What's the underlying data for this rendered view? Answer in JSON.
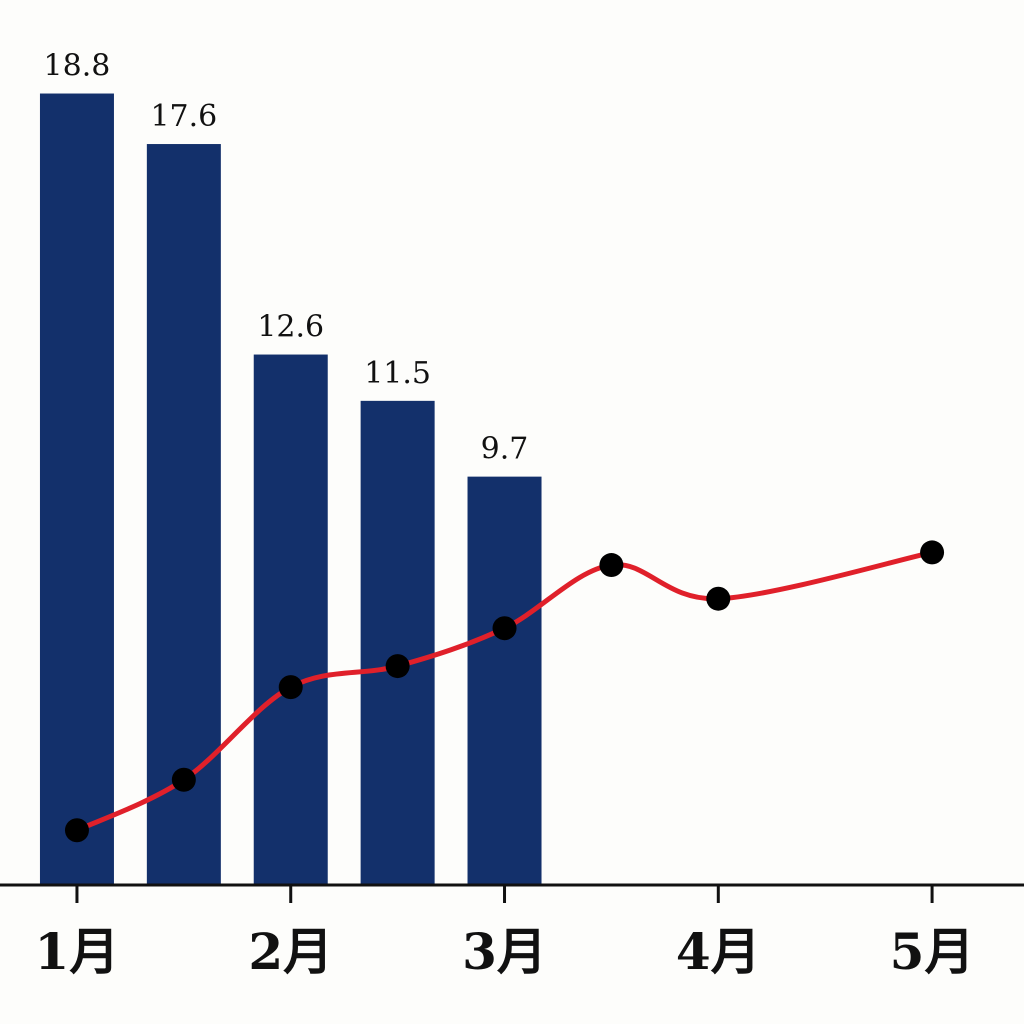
{
  "chart_data": {
    "type": "bar-line",
    "xlim": [
      0.64,
      5.43
    ],
    "xticks": [
      {
        "value": 1,
        "label": "1月"
      },
      {
        "value": 2,
        "label": "2月"
      },
      {
        "value": 3,
        "label": "3月"
      },
      {
        "value": 4,
        "label": "4月"
      },
      {
        "value": 5,
        "label": "5月"
      }
    ],
    "ylim": [
      0,
      20
    ],
    "series": [
      {
        "type": "bar",
        "color": "#13306b",
        "x": [
          1,
          1.5,
          2,
          2.5,
          3
        ],
        "values": [
          18.8,
          17.6,
          12.6,
          11.5,
          9.7
        ]
      },
      {
        "type": "line",
        "color": "#e0202a",
        "marker_color": "#000000",
        "x": [
          1,
          1.5,
          2,
          2.5,
          3,
          3.5,
          4,
          5
        ],
        "values": [
          1.3,
          2.5,
          4.7,
          5.2,
          6.1,
          7.6,
          6.8,
          7.9
        ]
      }
    ]
  }
}
